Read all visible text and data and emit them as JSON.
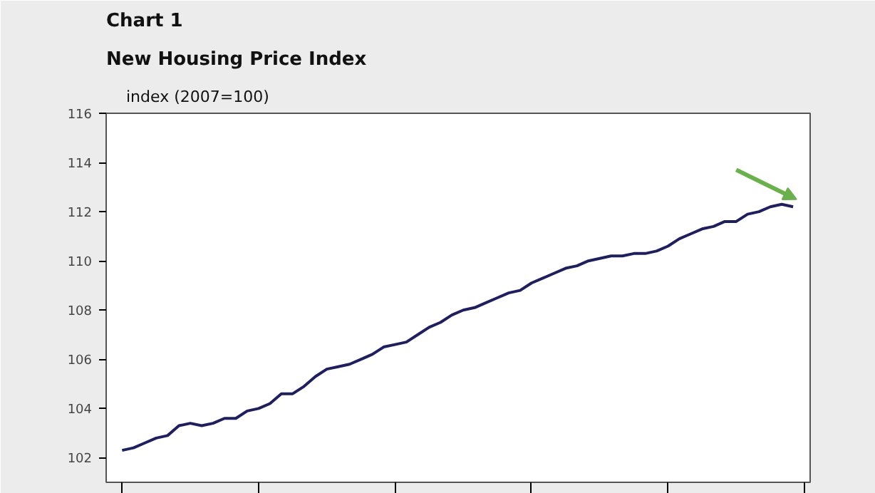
{
  "chart_data": {
    "type": "line",
    "title": "Chart 1",
    "subtitle": "New Housing Price Index",
    "ylabel": "index (2007=100)",
    "categories": [
      null,
      null,
      null,
      null,
      null,
      null,
      null,
      null,
      null,
      null,
      null,
      null,
      null,
      null,
      null,
      null,
      null,
      null,
      null,
      null,
      null,
      null,
      null,
      null,
      null,
      null,
      null,
      null,
      null,
      null,
      null,
      null,
      null,
      null,
      null,
      null,
      null,
      null,
      null,
      null,
      null,
      null,
      null,
      null,
      null,
      null,
      null,
      null,
      null,
      null,
      null,
      null,
      null,
      null,
      null,
      null,
      null,
      null,
      null,
      null
    ],
    "series": [
      {
        "color": "#1f1f5e",
        "values": [
          102.3,
          102.4,
          102.6,
          102.8,
          102.9,
          103.3,
          103.4,
          103.3,
          103.4,
          103.6,
          103.6,
          103.9,
          104.0,
          104.2,
          104.6,
          104.6,
          104.9,
          105.3,
          105.6,
          105.7,
          105.8,
          106.0,
          106.2,
          106.5,
          106.6,
          106.7,
          107.0,
          107.3,
          107.5,
          107.8,
          108.0,
          108.1,
          108.3,
          108.5,
          108.7,
          108.8,
          109.1,
          109.3,
          109.5,
          109.7,
          109.8,
          110.0,
          110.1,
          110.2,
          110.2,
          110.3,
          110.3,
          110.4,
          110.6,
          110.9,
          111.1,
          111.3,
          111.4,
          111.6,
          111.6,
          111.9,
          112.0,
          112.2,
          112.3,
          112.2
        ]
      }
    ],
    "ylim": [
      101,
      116
    ],
    "yticks": [
      102,
      104,
      106,
      108,
      110,
      112,
      114,
      116
    ],
    "grid": false,
    "marker": "none",
    "line_style": "solid"
  }
}
